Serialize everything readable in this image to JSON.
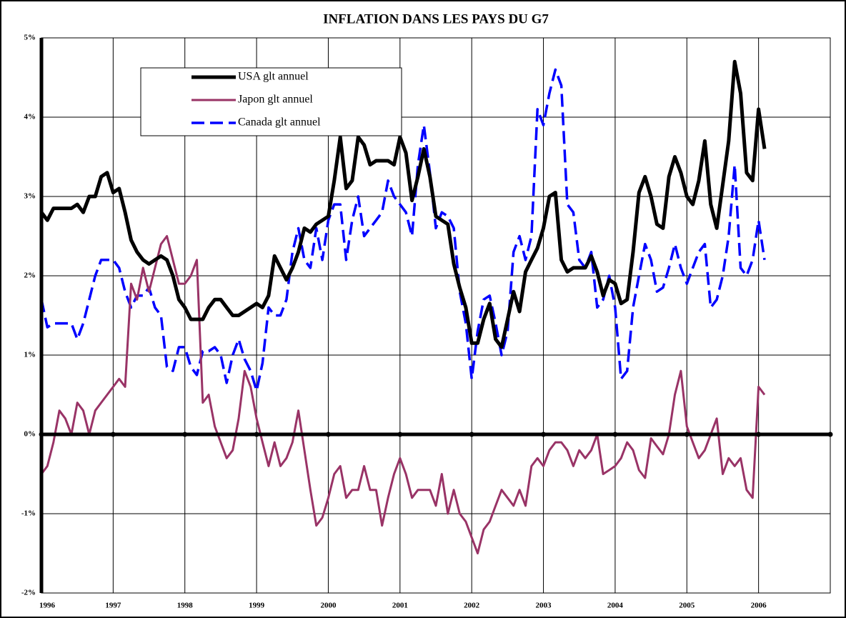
{
  "chart_data": {
    "type": "line",
    "title": "INFLATION DANS LES PAYS DU G7",
    "xlim": [
      1996,
      2007
    ],
    "xticks": [
      1996,
      1997,
      1998,
      1999,
      2000,
      2001,
      2002,
      2003,
      2004,
      2005,
      2006
    ],
    "ylim": [
      -2,
      5
    ],
    "yticks": [
      {
        "value": -2,
        "label": "-2%"
      },
      {
        "value": -1,
        "label": "-1%"
      },
      {
        "value": 0,
        "label": "0%"
      },
      {
        "value": 1,
        "label": "1%"
      },
      {
        "value": 2,
        "label": "2%"
      },
      {
        "value": 3,
        "label": "3%"
      },
      {
        "value": 4,
        "label": "4%"
      },
      {
        "value": 5,
        "label": "5%"
      }
    ],
    "grid": true,
    "x": [
      1996,
      1996.083,
      1996.167,
      1996.25,
      1996.333,
      1996.417,
      1996.5,
      1996.583,
      1996.667,
      1996.75,
      1996.833,
      1996.917,
      1997,
      1997.083,
      1997.167,
      1997.25,
      1997.333,
      1997.417,
      1997.5,
      1997.583,
      1997.667,
      1997.75,
      1997.833,
      1997.917,
      1998,
      1998.083,
      1998.167,
      1998.25,
      1998.333,
      1998.417,
      1998.5,
      1998.583,
      1998.667,
      1998.75,
      1998.833,
      1998.917,
      1999,
      1999.083,
      1999.167,
      1999.25,
      1999.333,
      1999.417,
      1999.5,
      1999.583,
      1999.667,
      1999.75,
      1999.833,
      1999.917,
      2000,
      2000.083,
      2000.167,
      2000.25,
      2000.333,
      2000.417,
      2000.5,
      2000.583,
      2000.667,
      2000.75,
      2000.833,
      2000.917,
      2001,
      2001.083,
      2001.167,
      2001.25,
      2001.333,
      2001.417,
      2001.5,
      2001.583,
      2001.667,
      2001.75,
      2001.833,
      2001.917,
      2002,
      2002.083,
      2002.167,
      2002.25,
      2002.333,
      2002.417,
      2002.5,
      2002.583,
      2002.667,
      2002.75,
      2002.833,
      2002.917,
      2003,
      2003.083,
      2003.167,
      2003.25,
      2003.333,
      2003.417,
      2003.5,
      2003.583,
      2003.667,
      2003.75,
      2003.833,
      2003.917,
      2004,
      2004.083,
      2004.167,
      2004.25,
      2004.333,
      2004.417,
      2004.5,
      2004.583,
      2004.667,
      2004.75,
      2004.833,
      2004.917,
      2005,
      2005.083,
      2005.167,
      2005.25,
      2005.333,
      2005.417,
      2005.5,
      2005.583,
      2005.667,
      2005.75,
      2005.833,
      2005.917,
      2006,
      2006.083
    ],
    "series": [
      {
        "name": "USA glt annuel",
        "color": "#000000",
        "width": 5,
        "style": "solid",
        "values": [
          2.8,
          2.7,
          2.85,
          2.85,
          2.85,
          2.85,
          2.9,
          2.8,
          3.0,
          3.0,
          3.25,
          3.3,
          3.05,
          3.1,
          2.8,
          2.45,
          2.3,
          2.2,
          2.15,
          2.2,
          2.25,
          2.2,
          2.0,
          1.7,
          1.6,
          1.45,
          1.45,
          1.45,
          1.6,
          1.7,
          1.7,
          1.6,
          1.5,
          1.5,
          1.55,
          1.6,
          1.65,
          1.6,
          1.75,
          2.25,
          2.1,
          1.95,
          2.1,
          2.3,
          2.6,
          2.55,
          2.65,
          2.7,
          2.75,
          3.2,
          3.75,
          3.1,
          3.2,
          3.75,
          3.65,
          3.4,
          3.45,
          3.45,
          3.45,
          3.4,
          3.75,
          3.55,
          2.95,
          3.25,
          3.6,
          3.25,
          2.75,
          2.7,
          2.65,
          2.15,
          1.85,
          1.6,
          1.15,
          1.15,
          1.45,
          1.65,
          1.2,
          1.1,
          1.45,
          1.8,
          1.55,
          2.05,
          2.2,
          2.35,
          2.6,
          3.0,
          3.05,
          2.2,
          2.05,
          2.1,
          2.1,
          2.1,
          2.25,
          2.05,
          1.75,
          1.95,
          1.9,
          1.65,
          1.7,
          2.3,
          3.05,
          3.25,
          3.0,
          2.65,
          2.6,
          3.25,
          3.5,
          3.3,
          3.0,
          2.9,
          3.2,
          3.7,
          2.9,
          2.6,
          3.15,
          3.7,
          4.7,
          4.3,
          3.3,
          3.2,
          4.1,
          3.6
        ]
      },
      {
        "name": "Japon glt annuel",
        "color": "#993366",
        "width": 3,
        "style": "solid",
        "values": [
          -0.5,
          -0.4,
          -0.1,
          0.3,
          0.2,
          0.0,
          0.4,
          0.3,
          0.0,
          0.3,
          0.4,
          0.5,
          0.6,
          0.7,
          0.6,
          1.9,
          1.7,
          2.1,
          1.8,
          2.1,
          2.4,
          2.5,
          2.2,
          1.9,
          1.9,
          2.0,
          2.2,
          0.4,
          0.5,
          0.1,
          -0.1,
          -0.3,
          -0.2,
          0.2,
          0.8,
          0.6,
          0.2,
          -0.1,
          -0.4,
          -0.1,
          -0.4,
          -0.3,
          -0.1,
          0.3,
          -0.2,
          -0.7,
          -1.15,
          -1.05,
          -0.8,
          -0.5,
          -0.4,
          -0.8,
          -0.7,
          -0.7,
          -0.4,
          -0.7,
          -0.7,
          -1.15,
          -0.8,
          -0.5,
          -0.3,
          -0.5,
          -0.8,
          -0.7,
          -0.7,
          -0.7,
          -0.9,
          -0.5,
          -1.0,
          -0.7,
          -1.0,
          -1.1,
          -1.3,
          -1.5,
          -1.2,
          -1.1,
          -0.9,
          -0.7,
          -0.8,
          -0.9,
          -0.7,
          -0.9,
          -0.4,
          -0.3,
          -0.4,
          -0.2,
          -0.1,
          -0.1,
          -0.2,
          -0.4,
          -0.2,
          -0.3,
          -0.2,
          0.0,
          -0.5,
          -0.45,
          -0.4,
          -0.3,
          -0.1,
          -0.2,
          -0.45,
          -0.55,
          -0.05,
          -0.15,
          -0.25,
          0.0,
          0.5,
          0.8,
          0.1,
          -0.1,
          -0.3,
          -0.2,
          0.0,
          0.2,
          -0.5,
          -0.3,
          -0.4,
          -0.3,
          -0.7,
          -0.8,
          0.6,
          0.5
        ]
      },
      {
        "name": "Canada glt annuel",
        "color": "#0000ff",
        "width": 3.5,
        "style": "dashed",
        "values": [
          1.7,
          1.35,
          1.4,
          1.4,
          1.4,
          1.4,
          1.2,
          1.4,
          1.7,
          2.0,
          2.2,
          2.2,
          2.2,
          2.1,
          1.8,
          1.6,
          1.75,
          1.75,
          1.85,
          1.6,
          1.5,
          0.85,
          0.8,
          1.1,
          1.1,
          0.85,
          0.75,
          1.05,
          1.05,
          1.1,
          1.0,
          0.65,
          1.0,
          1.2,
          0.95,
          0.8,
          0.55,
          0.9,
          1.6,
          1.5,
          1.5,
          1.7,
          2.3,
          2.6,
          2.2,
          2.1,
          2.6,
          2.2,
          2.7,
          2.9,
          2.9,
          2.2,
          2.7,
          3.0,
          2.5,
          2.6,
          2.7,
          2.8,
          3.2,
          3.0,
          2.9,
          2.8,
          2.5,
          3.4,
          3.9,
          3.3,
          2.6,
          2.8,
          2.75,
          2.6,
          1.8,
          1.4,
          0.7,
          1.3,
          1.7,
          1.75,
          1.4,
          1.0,
          1.3,
          2.3,
          2.5,
          2.2,
          2.5,
          4.1,
          3.9,
          4.3,
          4.6,
          4.4,
          2.9,
          2.8,
          2.2,
          2.1,
          2.3,
          1.6,
          1.7,
          2.0,
          1.6,
          0.7,
          0.8,
          1.6,
          2.0,
          2.4,
          2.2,
          1.8,
          1.85,
          2.1,
          2.4,
          2.1,
          1.9,
          2.1,
          2.3,
          2.4,
          1.6,
          1.7,
          2.0,
          2.5,
          3.4,
          2.1,
          2.0,
          2.2,
          2.7,
          2.2
        ]
      }
    ]
  }
}
